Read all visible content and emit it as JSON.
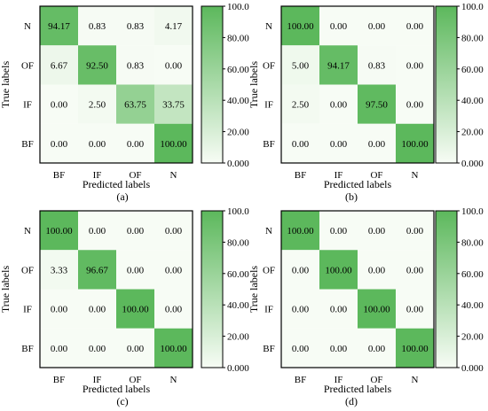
{
  "colors": {
    "low": "#f7fcf5",
    "high": "#5cb85c",
    "border": "#000000"
  },
  "chart_data": [
    {
      "type": "heatmap",
      "caption": "(a)",
      "xlabel": "Predicted labels",
      "ylabel": "True labels",
      "x_categories": [
        "BF",
        "IF",
        "OF",
        "N"
      ],
      "y_categories": [
        "N",
        "OF",
        "IF",
        "BF"
      ],
      "values": [
        [
          "94.17",
          "0.83",
          "0.83",
          "4.17"
        ],
        [
          "6.67",
          "92.50",
          "0.83",
          "0.00"
        ],
        [
          "0.00",
          "2.50",
          "63.75",
          "33.75"
        ],
        [
          "0.00",
          "0.00",
          "0.00",
          "100.00"
        ]
      ],
      "colorbar": {
        "range": [
          0,
          100
        ],
        "ticks": [
          "100.0",
          "80.00",
          "60.00",
          "40.00",
          "20.00",
          "0.000"
        ]
      }
    },
    {
      "type": "heatmap",
      "caption": "(b)",
      "xlabel": "Predicted labels",
      "ylabel": "True labels",
      "x_categories": [
        "BF",
        "IF",
        "OF",
        "N"
      ],
      "y_categories": [
        "N",
        "OF",
        "IF",
        "BF"
      ],
      "values": [
        [
          "100.00",
          "0.00",
          "0.00",
          "0.00"
        ],
        [
          "5.00",
          "94.17",
          "0.83",
          "0.00"
        ],
        [
          "2.50",
          "0.00",
          "97.50",
          "0.00"
        ],
        [
          "0.00",
          "0.00",
          "0.00",
          "100.00"
        ]
      ],
      "colorbar": {
        "range": [
          0,
          100
        ],
        "ticks": [
          "100.0",
          "80.00",
          "60.00",
          "40.00",
          "20.00",
          "0.000"
        ]
      }
    },
    {
      "type": "heatmap",
      "caption": "(c)",
      "xlabel": "Predicted labels",
      "ylabel": "True labels",
      "x_categories": [
        "BF",
        "IF",
        "OF",
        "N"
      ],
      "y_categories": [
        "N",
        "OF",
        "IF",
        "BF"
      ],
      "values": [
        [
          "100.00",
          "0.00",
          "0.00",
          "0.00"
        ],
        [
          "3.33",
          "96.67",
          "0.00",
          "0.00"
        ],
        [
          "0.00",
          "0.00",
          "100.00",
          "0.00"
        ],
        [
          "0.00",
          "0.00",
          "0.00",
          "100.00"
        ]
      ],
      "colorbar": {
        "range": [
          0,
          100
        ],
        "ticks": [
          "100.0",
          "80.00",
          "60.00",
          "40.00",
          "20.00",
          "0.000"
        ]
      }
    },
    {
      "type": "heatmap",
      "caption": "(d)",
      "xlabel": "Predicted labels",
      "ylabel": "True labels",
      "x_categories": [
        "BF",
        "IF",
        "OF",
        "N"
      ],
      "y_categories": [
        "N",
        "OF",
        "IF",
        "BF"
      ],
      "values": [
        [
          "100.00",
          "0.00",
          "0.00",
          "0.00"
        ],
        [
          "0.00",
          "100.00",
          "0.00",
          "0.00"
        ],
        [
          "0.00",
          "0.00",
          "100.00",
          "0.00"
        ],
        [
          "0.00",
          "0.00",
          "0.00",
          "100.00"
        ]
      ],
      "colorbar": {
        "range": [
          0,
          100
        ],
        "ticks": [
          "100.0",
          "80.00",
          "60.00",
          "40.00",
          "20.00",
          "0.000"
        ]
      }
    }
  ]
}
